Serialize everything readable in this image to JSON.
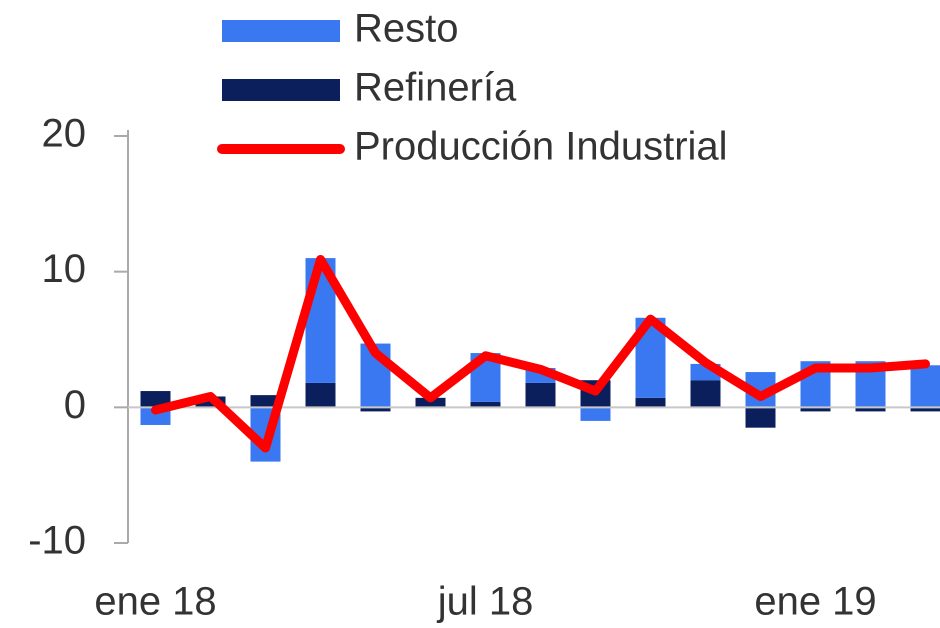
{
  "chart_data": {
    "type": "bar",
    "stacked": true,
    "categories": [
      "ene 18",
      null,
      null,
      null,
      null,
      null,
      "jul 18",
      null,
      null,
      null,
      null,
      null,
      "ene 19",
      null,
      null
    ],
    "series": [
      {
        "name": "Resto",
        "type": "bar",
        "color": "#3a78f2",
        "values": [
          -1.3,
          0.0,
          -4.0,
          9.2,
          4.7,
          0.0,
          3.6,
          1.1,
          -1.0,
          5.9,
          1.2,
          2.6,
          3.4,
          3.4,
          3.1
        ]
      },
      {
        "name": "Refinería",
        "type": "bar",
        "color": "#0b1f5c",
        "values": [
          1.2,
          0.8,
          0.9,
          1.8,
          -0.3,
          0.7,
          0.4,
          1.8,
          2.0,
          0.7,
          2.0,
          -1.5,
          -0.3,
          -0.3,
          -0.3
        ]
      },
      {
        "name": "Producción Industrial",
        "type": "line",
        "color": "#ff0000",
        "values": [
          -0.2,
          0.8,
          -3.0,
          10.9,
          4.0,
          0.7,
          3.8,
          2.8,
          1.2,
          6.5,
          3.3,
          0.8,
          2.9,
          2.9,
          3.2
        ]
      }
    ],
    "ylim": [
      -10,
      20
    ],
    "yticks": [
      -10,
      0,
      10,
      20
    ],
    "legend": "top"
  }
}
